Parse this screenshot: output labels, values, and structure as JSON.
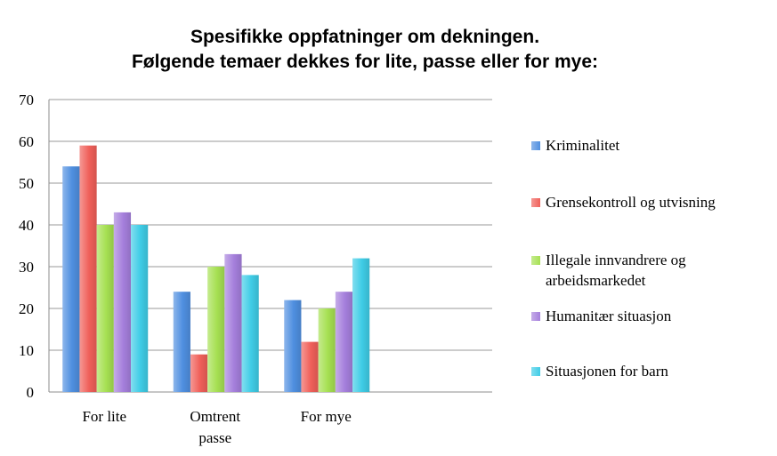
{
  "chart_data": {
    "type": "bar",
    "title": [
      "Spesifikke oppfatninger om dekningen.",
      "Følgende temaer dekkes for lite, passe eller for mye:"
    ],
    "categories": [
      [
        "For lite"
      ],
      [
        "Omtrent",
        "passe"
      ],
      [
        "For mye"
      ]
    ],
    "series": [
      {
        "name": "Kriminalitet",
        "values": [
          54,
          24,
          22
        ],
        "color": "#4f8fe0"
      },
      {
        "name": "Grensekontroll og utvisning",
        "values": [
          59,
          9,
          12
        ],
        "color": "#f0605a"
      },
      {
        "name": "Illegale innvandrere og arbeidsmarkedet",
        "values": [
          40,
          30,
          20
        ],
        "color": "#a6e052"
      },
      {
        "name": "Humanitær situasjon",
        "values": [
          43,
          33,
          24
        ],
        "color": "#a57fdc"
      },
      {
        "name": "Situasjonen for barn",
        "values": [
          40,
          28,
          32
        ],
        "color": "#3fcce6"
      }
    ],
    "yticks": [
      0,
      10,
      20,
      30,
      40,
      50,
      60,
      70
    ],
    "ylim": [
      0,
      70
    ],
    "grid": true,
    "legend": "right"
  }
}
